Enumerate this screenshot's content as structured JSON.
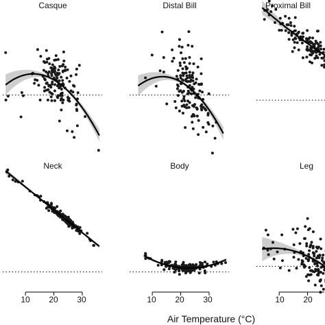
{
  "chart_data": {
    "type": "scatter",
    "xlabel": "Air Temperature (°C)",
    "xticks": [
      10,
      20,
      30
    ],
    "xlim": [
      2,
      37
    ],
    "grid": false,
    "legend": "none",
    "point_color": "#1a1a1a",
    "fit_color": "#000000",
    "band_color": "#bdbdbd",
    "reference_line": "dotted horizontal at 0",
    "panels": [
      {
        "title": "Casque",
        "ylim": [
          -1.2,
          4.2
        ],
        "fit": {
          "a": 0.8,
          "b": 1.3,
          "c": -0.006
        },
        "band": 0.2,
        "xrange": [
          3,
          36
        ],
        "cluster": {
          "center": 21.5,
          "sd": 3.5
        },
        "spread": 0.85,
        "n_points": 150,
        "seed": 11
      },
      {
        "title": "Distal Bill",
        "ylim": [
          -1.2,
          4.2
        ],
        "fit": {
          "a": 0.7,
          "b": 1.25,
          "c": -0.0065
        },
        "band": 0.24,
        "xrange": [
          5,
          35
        ],
        "cluster": {
          "center": 23,
          "sd": 3.2
        },
        "spread": 0.95,
        "n_points": 150,
        "seed": 23
      },
      {
        "title": "Proximal Bill",
        "ylim": [
          -1.0,
          4.8
        ],
        "fit": {
          "a": 3.2,
          "b": 1.7,
          "c": 0.0008
        },
        "band": 0.16,
        "xrange": [
          4,
          30
        ],
        "cluster": {
          "center": 21,
          "sd": 5
        },
        "spread": 0.45,
        "n_points": 150,
        "seed": 37
      },
      {
        "title": "Neck",
        "ylim": [
          -0.3,
          4.5
        ],
        "fit": {
          "a": 2.9,
          "b": 1.6,
          "c": 0.0
        },
        "band": 0.05,
        "xrange": [
          3,
          36
        ],
        "cluster": {
          "center": 23,
          "sd": 3.5
        },
        "spread": 0.1,
        "n_points": 150,
        "seed": 41
      },
      {
        "title": "Body",
        "ylim": [
          -0.3,
          4.5
        ],
        "fit": {
          "a": 0.2,
          "b": 0.2,
          "c": 0.0023
        },
        "band": 0.05,
        "xrange": [
          7,
          36
        ],
        "cluster": {
          "center": 22,
          "sd": 3.5
        },
        "spread": 0.12,
        "n_points": 150,
        "seed": 53
      },
      {
        "title": "Leg",
        "ylim": [
          -0.6,
          4.5
        ],
        "fit": {
          "a": 0.5,
          "b": 1.0,
          "c": -0.0028
        },
        "band": 0.24,
        "xrange": [
          4,
          30
        ],
        "cluster": {
          "center": 22,
          "sd": 3.5
        },
        "spread": 0.7,
        "n_points": 150,
        "seed": 67
      }
    ]
  }
}
